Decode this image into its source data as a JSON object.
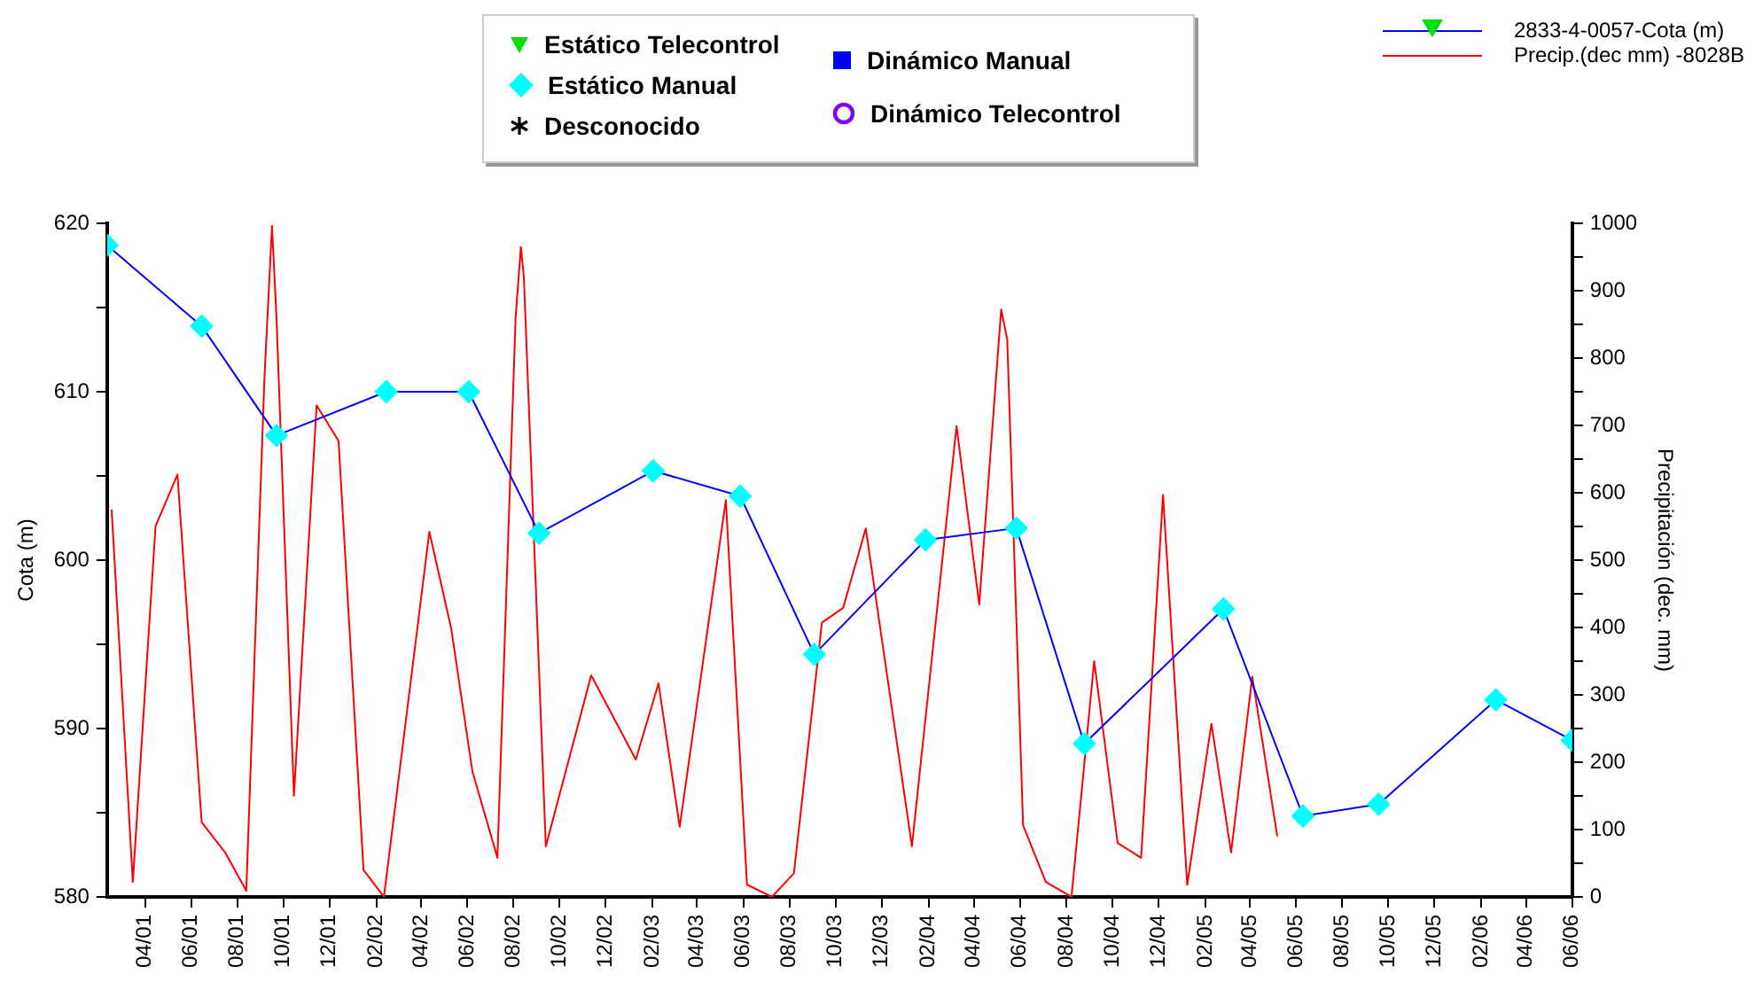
{
  "chart_data": {
    "type": "line",
    "ylabel": "Cota (m)",
    "y2label": "Precipitación (dec. mm)",
    "annotations": [
      "Estático Telecontrol",
      "Estático Manual",
      "Desconocido",
      "Dinámico Manual",
      "Dinámico Telecontrol"
    ],
    "xlim": [
      "2001-02-10",
      "2006-06-01"
    ],
    "xticks": [
      {
        "value": "2001-04-01",
        "label": "04/01"
      },
      {
        "value": "2001-06-01",
        "label": "06/01"
      },
      {
        "value": "2001-08-01",
        "label": "08/01"
      },
      {
        "value": "2001-10-01",
        "label": "10/01"
      },
      {
        "value": "2001-12-01",
        "label": "12/01"
      },
      {
        "value": "2002-02-01",
        "label": "02/02"
      },
      {
        "value": "2002-04-01",
        "label": "04/02"
      },
      {
        "value": "2002-06-01",
        "label": "06/02"
      },
      {
        "value": "2002-08-01",
        "label": "08/02"
      },
      {
        "value": "2002-10-01",
        "label": "10/02"
      },
      {
        "value": "2002-12-01",
        "label": "12/02"
      },
      {
        "value": "2003-02-01",
        "label": "02/03"
      },
      {
        "value": "2003-04-01",
        "label": "04/03"
      },
      {
        "value": "2003-06-01",
        "label": "06/03"
      },
      {
        "value": "2003-08-01",
        "label": "08/03"
      },
      {
        "value": "2003-10-01",
        "label": "10/03"
      },
      {
        "value": "2003-12-01",
        "label": "12/03"
      },
      {
        "value": "2004-02-01",
        "label": "02/04"
      },
      {
        "value": "2004-04-01",
        "label": "04/04"
      },
      {
        "value": "2004-06-01",
        "label": "06/04"
      },
      {
        "value": "2004-08-01",
        "label": "08/04"
      },
      {
        "value": "2004-10-01",
        "label": "10/04"
      },
      {
        "value": "2004-12-01",
        "label": "12/04"
      },
      {
        "value": "2005-02-01",
        "label": "02/05"
      },
      {
        "value": "2005-04-01",
        "label": "04/05"
      },
      {
        "value": "2005-06-01",
        "label": "06/05"
      },
      {
        "value": "2005-08-01",
        "label": "08/05"
      },
      {
        "value": "2005-10-01",
        "label": "10/05"
      },
      {
        "value": "2005-12-01",
        "label": "12/05"
      },
      {
        "value": "2006-02-01",
        "label": "02/06"
      },
      {
        "value": "2006-04-01",
        "label": "04/06"
      },
      {
        "value": "2006-06-01",
        "label": "06/06"
      }
    ],
    "ylim": [
      580,
      620
    ],
    "yticks": [
      580,
      {
        "value": 585,
        "label": null
      },
      590,
      {
        "value": 595,
        "label": null
      },
      600,
      {
        "value": 605,
        "label": null
      },
      610,
      {
        "value": 615,
        "label": null
      },
      620
    ],
    "y2lim": [
      0,
      1000
    ],
    "y2ticks": [
      0,
      {
        "value": 50,
        "label": null
      },
      100,
      {
        "value": 150,
        "label": null
      },
      200,
      {
        "value": 250,
        "label": null
      },
      300,
      {
        "value": 350,
        "label": null
      },
      400,
      {
        "value": 450,
        "label": null
      },
      500,
      {
        "value": 550,
        "label": null
      },
      600,
      {
        "value": 650,
        "label": null
      },
      700,
      {
        "value": 750,
        "label": null
      },
      800,
      {
        "value": 850,
        "label": null
      },
      900,
      {
        "value": 950,
        "label": null
      },
      1000
    ],
    "grid": false,
    "legend": "top right",
    "series": [
      {
        "name": "2833-4-0057-Cota (m)",
        "color": "#0000ff",
        "marker": "diamond",
        "colors": [
          "#00ffff",
          "#00ffff",
          "#00ffff",
          "#00ffff",
          "#00ffff",
          "#00ffff",
          "#00ffff",
          "#00ffff",
          "#00ffff",
          "#00ffff",
          "#00ffff",
          "#00ffff",
          "#00ffff",
          "#00ffff",
          "#00ffff",
          "#00ffff",
          "#00ffff"
        ],
        "x": [
          "2001-02-10",
          "2001-06-15",
          "2001-09-22",
          "2002-02-14",
          "2002-06-03",
          "2002-09-04",
          "2003-02-02",
          "2003-05-28",
          "2003-09-03",
          "2004-01-28",
          "2004-05-27",
          "2004-08-25",
          "2005-02-25",
          "2005-06-10",
          "2005-09-18",
          "2006-02-20",
          "2006-06-01"
        ],
        "values": [
          618.7,
          613.9,
          607.4,
          610.0,
          610.0,
          601.6,
          605.3,
          603.8,
          594.4,
          601.2,
          601.9,
          589.1,
          597.1,
          584.8,
          585.5,
          591.7,
          589.3
        ]
      },
      {
        "name": "Precip.(dec mm) -8028B",
        "color": "#ff0000",
        "marker": "none",
        "axis": "y2",
        "x": [
          "2001-02-16",
          "2001-03-16",
          "2001-04-15",
          "2001-05-14",
          "2001-06-15",
          "2001-07-16",
          "2001-08-13",
          "2001-09-06",
          "2001-09-16",
          "2001-09-22",
          "2001-10-15",
          "2001-11-14",
          "2001-12-13",
          "2002-01-15",
          "2002-02-11",
          "2002-04-12",
          "2002-05-11",
          "2002-06-08",
          "2002-07-11",
          "2002-08-04",
          "2002-08-11",
          "2002-08-15",
          "2002-09-13",
          "2002-11-12",
          "2003-01-10",
          "2003-02-09",
          "2003-03-09",
          "2003-05-09",
          "2003-06-06",
          "2003-07-09",
          "2003-08-07",
          "2003-09-13",
          "2003-10-11",
          "2003-11-10",
          "2003-12-21",
          "2004-01-10",
          "2004-03-09",
          "2004-04-08",
          "2004-05-07",
          "2004-05-15",
          "2004-06-05",
          "2004-07-05",
          "2004-08-08",
          "2004-09-07",
          "2004-10-08",
          "2004-11-08",
          "2004-12-07",
          "2005-01-08",
          "2005-02-09",
          "2005-03-07",
          "2005-04-04",
          "2005-05-07"
        ],
        "values": [
          575,
          22,
          550,
          627,
          111,
          66,
          9,
          770,
          996,
          858,
          150,
          730,
          677,
          40,
          0,
          542,
          398,
          186,
          58,
          858,
          965,
          920,
          75,
          329,
          204,
          317,
          104,
          589,
          18,
          0,
          35,
          407,
          429,
          547,
          230,
          75,
          699,
          434,
          872,
          828,
          106,
          22,
          0,
          350,
          80,
          58,
          597,
          18,
          257,
          66,
          327,
          90
        ]
      }
    ]
  }
}
